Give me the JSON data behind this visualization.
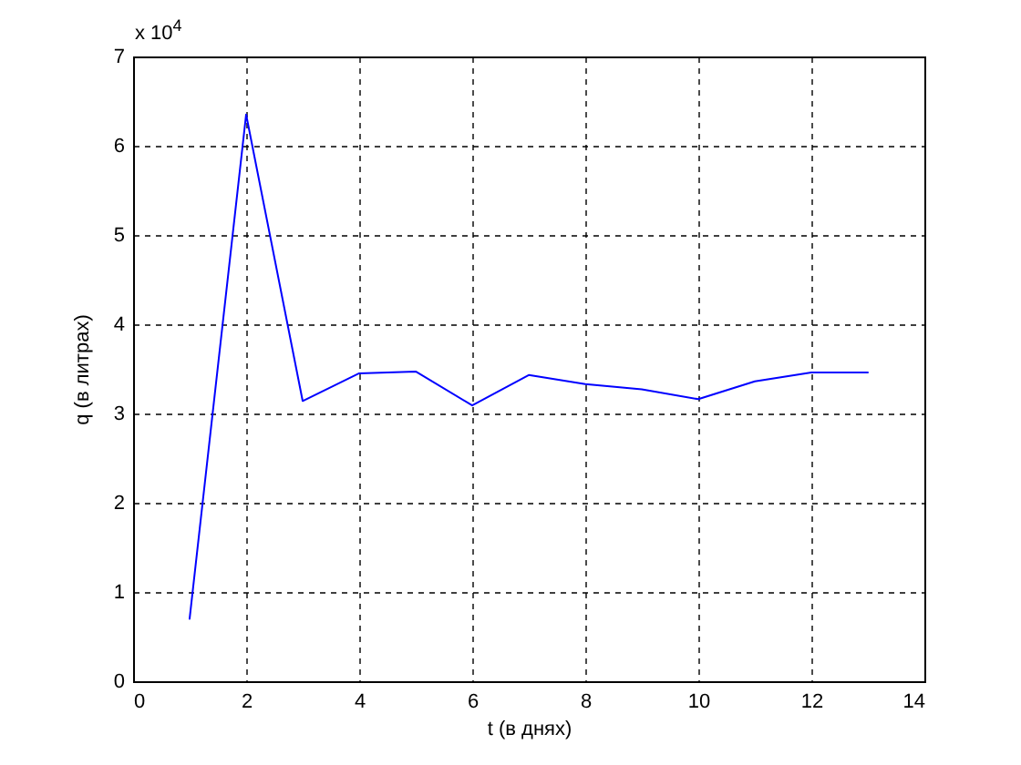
{
  "chart_data": {
    "type": "line",
    "xlabel": "t (в днях)",
    "ylabel": "q (в литрах)",
    "annotations": [
      "x 10$^{4}$"
    ],
    "x": [
      1,
      2,
      3,
      4,
      5,
      6,
      7,
      8,
      9,
      10,
      11,
      12,
      13
    ],
    "series": [
      {
        "color": "#0000ff",
        "values": [
          0.7,
          6.35,
          3.14,
          3.45,
          3.47,
          3.09,
          3.43,
          3.33,
          3.27,
          3.16,
          3.36,
          3.46,
          3.46
        ]
      }
    ],
    "xlim": [
      0,
      14
    ],
    "xticks": [
      0,
      2,
      4,
      6,
      8,
      10,
      12,
      14
    ],
    "ylim": [
      0,
      7
    ],
    "yticks": [
      0,
      1,
      2,
      3,
      4,
      5,
      6,
      7
    ],
    "grid": true
  }
}
